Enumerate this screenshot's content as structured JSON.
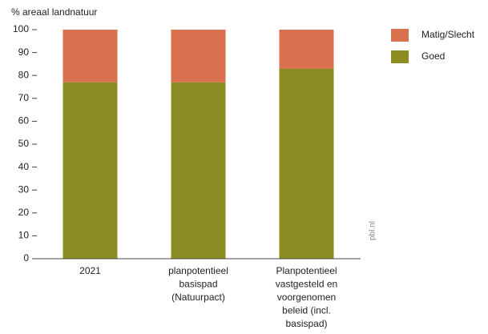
{
  "chart_data": {
    "type": "stacked_bar",
    "y_label": "% areaal landnatuur",
    "source": "pbl.nl",
    "categories": [
      [
        "2021"
      ],
      [
        "planpotentieel",
        "basispad",
        "(Natuurpact)"
      ],
      [
        "Planpotentieel",
        "vastgesteld en",
        "voorgenomen",
        "beleid (incl.",
        "basispad)"
      ]
    ],
    "series": [
      {
        "name": "Goed",
        "color": "#8c8c22",
        "values": [
          77,
          77,
          83
        ]
      },
      {
        "name": "Matig/Slecht",
        "color": "#d9704e",
        "values": [
          23,
          23,
          17
        ]
      }
    ],
    "ylim": [
      0,
      100
    ],
    "yticks": [
      0,
      10,
      20,
      30,
      40,
      50,
      60,
      70,
      80,
      90,
      100
    ],
    "grid": false,
    "legend": "top-right"
  }
}
